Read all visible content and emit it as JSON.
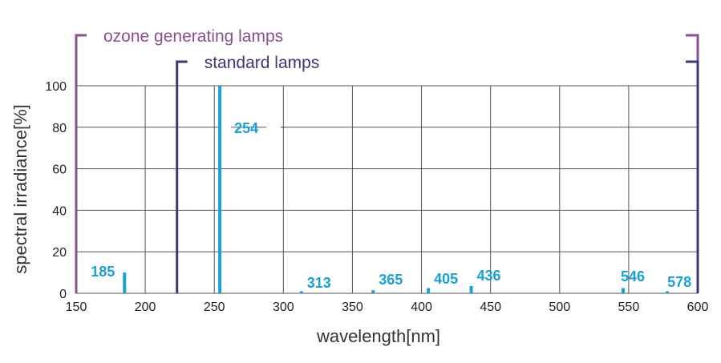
{
  "chart_data": {
    "type": "bar",
    "xlabel": "wavelength[nm]",
    "ylabel": "spectral irradiance[%]",
    "xlim": [
      150,
      600
    ],
    "ylim": [
      0,
      100
    ],
    "x_ticks": [
      "150",
      "200",
      "250",
      "300",
      "350",
      "400",
      "450",
      "500",
      "550",
      "600"
    ],
    "y_ticks": [
      "0",
      "20",
      "40",
      "60",
      "80",
      "100"
    ],
    "grid": true,
    "series": [
      {
        "x": [
          185,
          254,
          313,
          365,
          405,
          436,
          546,
          578
        ],
        "values": [
          10,
          100,
          1,
          1.5,
          2.5,
          3.5,
          2.5,
          1
        ],
        "labels": [
          "185",
          "254",
          "313",
          "365",
          "405",
          "436",
          "546",
          "578"
        ]
      }
    ],
    "ranges": [
      {
        "label": "ozone generating lamps",
        "start": 150,
        "end": 600
      },
      {
        "label": "standard lamps",
        "start": 223,
        "end": 600
      }
    ],
    "colors": {
      "peaks": "#1a9fd6",
      "ozone": "#8b4f8f",
      "standard": "#3a3878",
      "grid": "#555555"
    }
  }
}
